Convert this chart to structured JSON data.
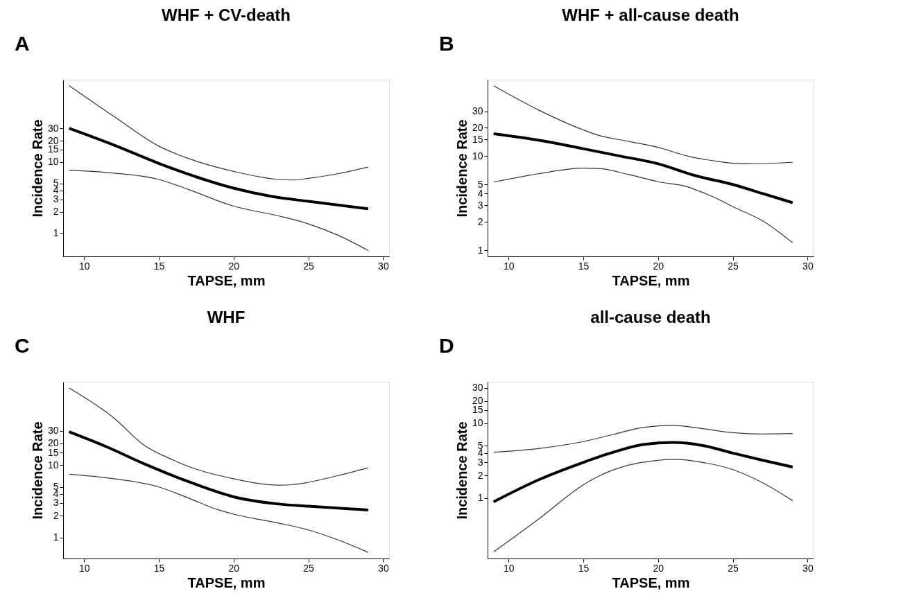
{
  "chart_data": [
    {
      "type": "line",
      "title": "WHF + CV-death",
      "annotations": [
        "A"
      ],
      "xlabel": "TAPSE, mm",
      "ylabel": "Incidence Rate",
      "log": "y",
      "grid": false,
      "marker": "none",
      "line_style": "solid",
      "xlim": [
        8.6,
        30.4
      ],
      "xticks": [
        10,
        15,
        20,
        25,
        30
      ],
      "ylim": [
        0.47,
        145
      ],
      "yticks": [
        1,
        2,
        3,
        4,
        5,
        10,
        15,
        20,
        30
      ],
      "series": [
        {
          "color": "#000000",
          "x": [
            9,
            12,
            15,
            17.5,
            20,
            22.5,
            25,
            29
          ],
          "values": [
            30,
            17.4,
            9.6,
            6.2,
            4.3,
            3.3,
            2.8,
            2.2
          ]
        },
        {
          "color": "#333333",
          "x": [
            9,
            12,
            15,
            17,
            20,
            23,
            24,
            25,
            27,
            29
          ],
          "values": [
            120,
            44,
            16.8,
            11.2,
            7.4,
            5.7,
            5.6,
            5.9,
            6.9,
            8.5
          ]
        },
        {
          "color": "#333333",
          "x": [
            9,
            12,
            15,
            17,
            20,
            23,
            25,
            27,
            29
          ],
          "values": [
            7.7,
            7.0,
            5.7,
            4.1,
            2.4,
            1.75,
            1.35,
            0.93,
            0.57
          ]
        }
      ]
    },
    {
      "type": "line",
      "title": "WHF + all-cause death",
      "annotations": [
        "B"
      ],
      "xlabel": "TAPSE, mm",
      "ylabel": "Incidence Rate",
      "log": "y",
      "grid": false,
      "marker": "none",
      "line_style": "solid",
      "xlim": [
        8.6,
        30.4
      ],
      "xticks": [
        10,
        15,
        20,
        25,
        30
      ],
      "ylim": [
        0.86,
        65
      ],
      "yticks": [
        1,
        2,
        3,
        4,
        5,
        10,
        15,
        20,
        30
      ],
      "series": [
        {
          "color": "#000000",
          "x": [
            9,
            12,
            15,
            17.5,
            20,
            22.5,
            25,
            27,
            29
          ],
          "values": [
            17.3,
            14.8,
            12.0,
            10,
            8.3,
            6.2,
            5.0,
            4.0,
            3.2
          ]
        },
        {
          "color": "#333333",
          "x": [
            9,
            12,
            15,
            16,
            18,
            20,
            22,
            24,
            25,
            26,
            29
          ],
          "values": [
            56,
            31,
            19,
            16.7,
            14.4,
            12.4,
            10,
            8.8,
            8.4,
            8.3,
            8.6
          ]
        },
        {
          "color": "#333333",
          "x": [
            9,
            12,
            15,
            16,
            18,
            20,
            22,
            23,
            24,
            25,
            27,
            29
          ],
          "values": [
            5.3,
            6.5,
            7.45,
            7.4,
            6.4,
            5.35,
            4.7,
            4.1,
            3.5,
            2.9,
            2.05,
            1.2
          ]
        }
      ]
    },
    {
      "type": "line",
      "title": "WHF",
      "annotations": [
        "C"
      ],
      "xlabel": "TAPSE, mm",
      "ylabel": "Incidence Rate",
      "log": "y",
      "grid": false,
      "marker": "none",
      "line_style": "solid",
      "xlim": [
        8.6,
        30.4
      ],
      "xticks": [
        10,
        15,
        20,
        25,
        30
      ],
      "ylim": [
        0.51,
        143
      ],
      "yticks": [
        1,
        2,
        3,
        4,
        5,
        10,
        15,
        20,
        30
      ],
      "series": [
        {
          "color": "#000000",
          "x": [
            9,
            11.5,
            14,
            17,
            20,
            23,
            25,
            29
          ],
          "values": [
            29,
            18,
            10.5,
            5.9,
            3.65,
            2.9,
            2.7,
            2.4
          ]
        },
        {
          "color": "#333333",
          "x": [
            9,
            12,
            14,
            16,
            17,
            20,
            23,
            24,
            25,
            27,
            29
          ],
          "values": [
            117,
            45,
            19,
            11.7,
            9.6,
            6.5,
            5.3,
            5.4,
            5.8,
            7.2,
            9.2
          ]
        },
        {
          "color": "#333333",
          "x": [
            9,
            12,
            15,
            17,
            19,
            20,
            23,
            25,
            27,
            29
          ],
          "values": [
            7.5,
            6.5,
            5.0,
            3.5,
            2.4,
            2.1,
            1.58,
            1.27,
            0.92,
            0.62
          ]
        }
      ]
    },
    {
      "type": "line",
      "title": "all-cause death",
      "annotations": [
        "D"
      ],
      "xlabel": "TAPSE, mm",
      "ylabel": "Incidence Rate",
      "log": "y",
      "grid": false,
      "marker": "none",
      "line_style": "solid",
      "xlim": [
        8.6,
        30.4
      ],
      "xticks": [
        10,
        15,
        20,
        25,
        30
      ],
      "ylim": [
        0.155,
        36
      ],
      "yticks": [
        1,
        2,
        3,
        4,
        5,
        10,
        15,
        20,
        30
      ],
      "series": [
        {
          "color": "#000000",
          "x": [
            9,
            12,
            15,
            17,
            19,
            21,
            23,
            25,
            27,
            29
          ],
          "values": [
            0.89,
            1.75,
            3.0,
            4.1,
            5.2,
            5.55,
            5.05,
            4.0,
            3.2,
            2.6
          ]
        },
        {
          "color": "#333333",
          "x": [
            9,
            12,
            15,
            17,
            19,
            21,
            23,
            25,
            27,
            29
          ],
          "values": [
            4.1,
            4.6,
            5.7,
            7.1,
            8.8,
            9.4,
            8.5,
            7.5,
            7.2,
            7.3
          ]
        },
        {
          "color": "#333333",
          "x": [
            9,
            12,
            15,
            16,
            18,
            20,
            21,
            23,
            25,
            27,
            29
          ],
          "values": [
            0.19,
            0.52,
            1.5,
            1.95,
            2.75,
            3.2,
            3.3,
            3.0,
            2.4,
            1.6,
            0.92
          ]
        }
      ]
    }
  ]
}
